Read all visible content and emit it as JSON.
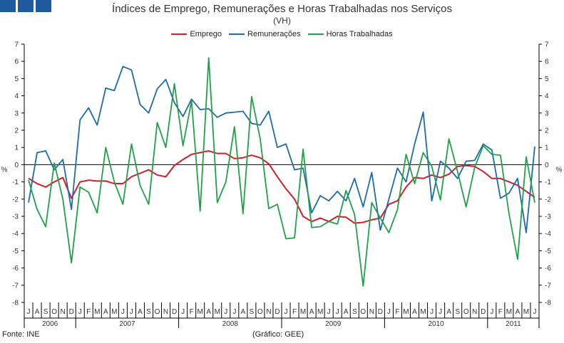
{
  "header": {
    "title": "Índices de Emprego, Remunerações e Horas Trabalhadas nos Serviços",
    "subtitle": "(VH)"
  },
  "footer": {
    "source": "Fonte: INE",
    "credit": "(Gráfico: GEE)"
  },
  "chart_data": {
    "type": "line",
    "ylabel": "%",
    "ylim": [
      -8,
      7
    ],
    "yticks": [
      -8,
      -7,
      -6,
      -5,
      -4,
      -3,
      -2,
      -1,
      0,
      1,
      2,
      3,
      4,
      5,
      6,
      7
    ],
    "legend_position": "top-center",
    "grid": false,
    "months": [
      "J",
      "A",
      "S",
      "O",
      "N",
      "D",
      "J",
      "F",
      "M",
      "A",
      "M",
      "J",
      "J",
      "A",
      "S",
      "O",
      "N",
      "D",
      "J",
      "F",
      "M",
      "A",
      "M",
      "J",
      "J",
      "A",
      "S",
      "O",
      "N",
      "D",
      "J",
      "F",
      "M",
      "A",
      "M",
      "J",
      "J",
      "A",
      "S",
      "O",
      "N",
      "D",
      "J",
      "F",
      "M",
      "A",
      "M",
      "J",
      "J",
      "A",
      "S",
      "O",
      "N",
      "D",
      "J",
      "F",
      "M",
      "A",
      "M",
      "J"
    ],
    "years": [
      {
        "label": "2006",
        "start": 0,
        "count": 6
      },
      {
        "label": "2007",
        "start": 6,
        "count": 12
      },
      {
        "label": "2008",
        "start": 18,
        "count": 12
      },
      {
        "label": "2009",
        "start": 30,
        "count": 12
      },
      {
        "label": "2010",
        "start": 42,
        "count": 12
      },
      {
        "label": "2011",
        "start": 54,
        "count": 6
      }
    ],
    "series": [
      {
        "name": "Emprego",
        "color": "#d0202a",
        "values": [
          -0.8,
          -1.1,
          -1.3,
          -1.0,
          -0.75,
          -1.95,
          -1.0,
          -0.9,
          -0.95,
          -0.95,
          -1.1,
          -1.1,
          -0.7,
          -0.5,
          -0.3,
          -0.6,
          -0.7,
          -0.05,
          0.3,
          0.6,
          0.7,
          0.8,
          0.65,
          0.65,
          0.35,
          0.4,
          0.55,
          0.4,
          0.05,
          -0.7,
          -1.4,
          -2.0,
          -3.0,
          -3.3,
          -3.1,
          -3.3,
          -3.0,
          -3.05,
          -3.4,
          -3.35,
          -3.2,
          -3.1,
          -2.3,
          -2.1,
          -1.3,
          -0.75,
          -0.8,
          -0.6,
          -0.75,
          -0.55,
          -0.1,
          -0.05,
          -0.1,
          -0.4,
          -0.8,
          -0.8,
          -1.0,
          -1.2,
          -1.55,
          -1.9
        ]
      },
      {
        "name": "Remunerações",
        "color": "#1f6aaa",
        "values": [
          -2.2,
          0.7,
          0.8,
          -0.3,
          0.3,
          -2.6,
          2.6,
          3.3,
          2.3,
          4.45,
          4.3,
          5.7,
          5.5,
          3.5,
          3.0,
          4.4,
          4.95,
          3.6,
          2.8,
          3.8,
          3.2,
          3.25,
          2.75,
          3.0,
          3.05,
          3.1,
          2.4,
          2.3,
          3.1,
          1.0,
          1.2,
          -0.3,
          -0.2,
          -2.8,
          -1.8,
          -2.1,
          -1.55,
          -2.1,
          -0.8,
          -2.45,
          -0.45,
          -3.8,
          -2.0,
          -0.2,
          -1.0,
          1.2,
          3.05,
          -2.1,
          0.2,
          -0.2,
          -0.8,
          0.2,
          0.25,
          1.2,
          0.85,
          -1.95,
          -1.65,
          -0.8,
          -3.95,
          1.05
        ]
      },
      {
        "name": "Horas Trabalhadas",
        "color": "#21a04a",
        "values": [
          -0.9,
          -2.6,
          -3.6,
          0.1,
          -2.0,
          -5.7,
          -1.3,
          -1.6,
          -2.8,
          1.0,
          -1.0,
          -2.3,
          1.2,
          -1.2,
          -2.3,
          2.45,
          1.0,
          4.7,
          1.1,
          3.7,
          -2.7,
          6.2,
          -2.2,
          -1.0,
          2.2,
          -2.85,
          3.95,
          1.5,
          -2.55,
          -2.3,
          -4.3,
          -4.25,
          0.9,
          -3.65,
          -3.6,
          -3.3,
          -3.45,
          -1.5,
          -2.9,
          -7.05,
          -2.2,
          -3.1,
          -3.95,
          -2.6,
          0.6,
          -1.1,
          0.7,
          -0.1,
          -2.05,
          1.5,
          -0.4,
          -2.45,
          -0.15,
          1.1,
          0.6,
          0.55,
          -2.85,
          -5.5,
          0.45,
          -2.2
        ]
      }
    ]
  }
}
